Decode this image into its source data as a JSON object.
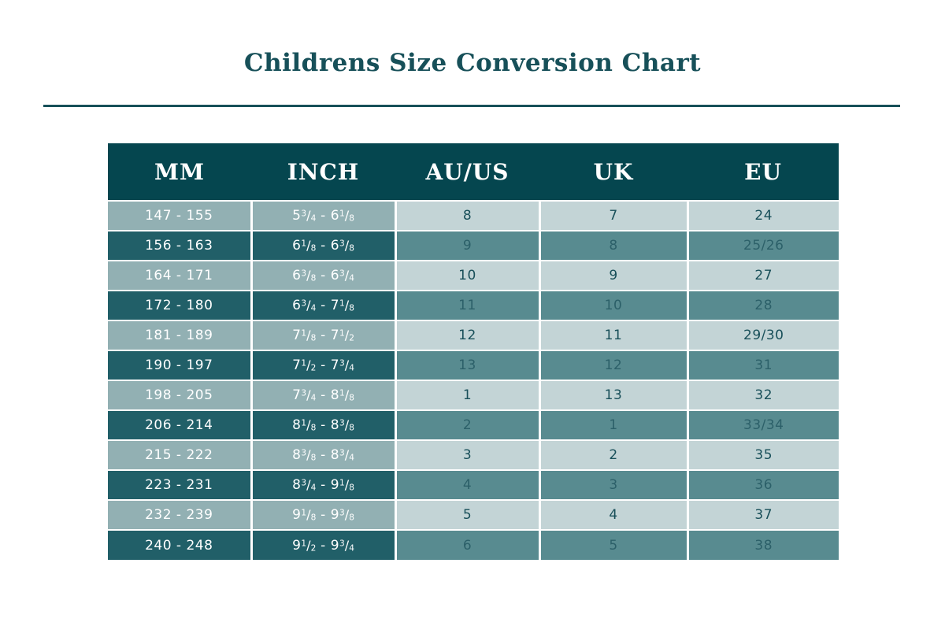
{
  "title": "Childrens Size Conversion Chart",
  "colors": {
    "accent": "#175059",
    "header_bg": "#05464f",
    "row_light_left": "#92b0b3",
    "row_light_right": "#c3d4d6",
    "row_dark_left": "#215f68",
    "row_dark_right": "#588b90",
    "text_on_light": "#184f59",
    "text_on_medium": "#2c6069",
    "text_on_dark": "#ffffff"
  },
  "chart_data": {
    "type": "table",
    "title": "Childrens Size Conversion Chart",
    "columns": [
      "MM",
      "INCH",
      "AU/US",
      "UK",
      "EU"
    ],
    "rows": [
      [
        "147 - 155",
        "5 3/4 - 6 1/8",
        "8",
        "7",
        "24"
      ],
      [
        "156 - 163",
        "6 1/8 - 6 3/8",
        "9",
        "8",
        "25/26"
      ],
      [
        "164 - 171",
        "6 3/8 - 6 3/4",
        "10",
        "9",
        "27"
      ],
      [
        "172 - 180",
        "6 3/4 - 7 1/8",
        "11",
        "10",
        "28"
      ],
      [
        "181 - 189",
        "7 1/8 - 7 1/2",
        "12",
        "11",
        "29/30"
      ],
      [
        "190 - 197",
        "7 1/2 - 7 3/4",
        "13",
        "12",
        "31"
      ],
      [
        "198 - 205",
        "7 3/4 - 8 1/8",
        "1",
        "13",
        "32"
      ],
      [
        "206 - 214",
        "8 1/8 - 8 3/8",
        "2",
        "1",
        "33/34"
      ],
      [
        "215 - 222",
        "8 3/8 - 8 3/4",
        "3",
        "2",
        "35"
      ],
      [
        "223 - 231",
        "8 3/4 - 9 1/8",
        "4",
        "3",
        "36"
      ],
      [
        "232 - 239",
        "9 1/8 - 9 3/8",
        "5",
        "4",
        "37"
      ],
      [
        "240 - 248",
        "9 1/2 - 9 3/4",
        "6",
        "5",
        "38"
      ]
    ],
    "layout": {
      "row_striping": "alternating light/dark starting light",
      "left_columns_darker": true,
      "legend": "none",
      "grid": "white separators between rows and columns"
    }
  }
}
